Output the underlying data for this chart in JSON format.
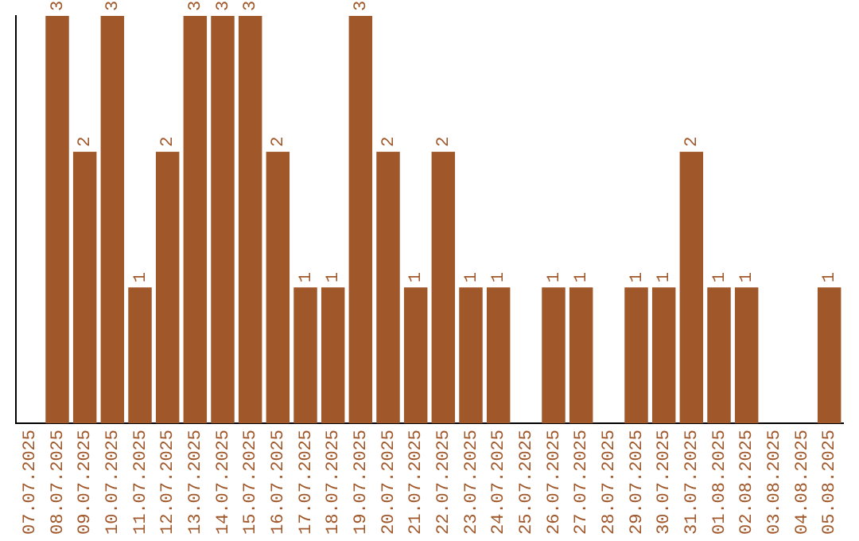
{
  "chart_data": {
    "type": "bar",
    "categories": [
      "07.07.2025",
      "08.07.2025",
      "09.07.2025",
      "10.07.2025",
      "11.07.2025",
      "12.07.2025",
      "13.07.2025",
      "14.07.2025",
      "15.07.2025",
      "16.07.2025",
      "17.07.2025",
      "18.07.2025",
      "19.07.2025",
      "20.07.2025",
      "21.07.2025",
      "22.07.2025",
      "23.07.2025",
      "24.07.2025",
      "25.07.2025",
      "26.07.2025",
      "27.07.2025",
      "28.07.2025",
      "29.07.2025",
      "30.07.2025",
      "31.07.2025",
      "01.08.2025",
      "02.08.2025",
      "03.08.2025",
      "04.08.2025",
      "05.08.2025"
    ],
    "values": [
      null,
      3,
      2,
      3,
      1,
      2,
      3,
      3,
      3,
      2,
      1,
      1,
      3,
      2,
      1,
      2,
      1,
      1,
      null,
      1,
      1,
      null,
      1,
      1,
      2,
      1,
      1,
      null,
      null,
      1
    ],
    "color": "#a0572a",
    "ylim": [
      0,
      3
    ],
    "data_labels": true,
    "grid": false,
    "legend": false,
    "tick_labels": "x"
  }
}
